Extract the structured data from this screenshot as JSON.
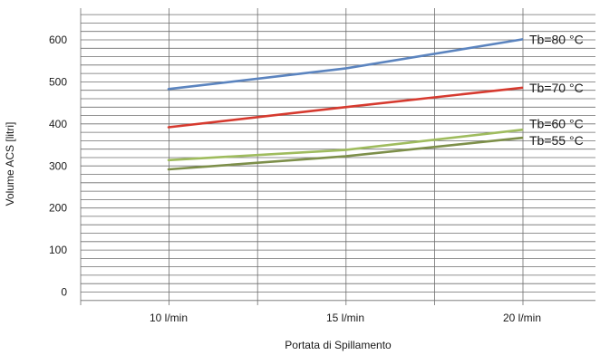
{
  "chart_data": {
    "type": "line",
    "x": [
      10,
      15,
      20
    ],
    "x_tick_labels": [
      "10 l/min",
      "15 l/min",
      "20 l/min"
    ],
    "xlabel": "Portata di Spillamento",
    "ylabel": "Volume ACS [litri]",
    "ylim": [
      0,
      620
    ],
    "y_ticks": [
      0,
      100,
      200,
      300,
      400,
      500,
      600
    ],
    "y_tick_labels": [
      "0",
      "100",
      "200",
      "300",
      "400",
      "500",
      "600"
    ],
    "grid": true,
    "legend": "none",
    "series": [
      {
        "name": "Tb=80 °C",
        "values": [
          483,
          532,
          601
        ],
        "color": "#5b84bf"
      },
      {
        "name": "Tb=70 °C",
        "values": [
          392,
          440,
          486
        ],
        "color": "#d63a2f"
      },
      {
        "name": "Tb=60 °C",
        "values": [
          314,
          338,
          386
        ],
        "color": "#9fbc5e"
      },
      {
        "name": "Tb=55 °C",
        "values": [
          292,
          323,
          367
        ],
        "color": "#7d8f4a"
      }
    ]
  }
}
